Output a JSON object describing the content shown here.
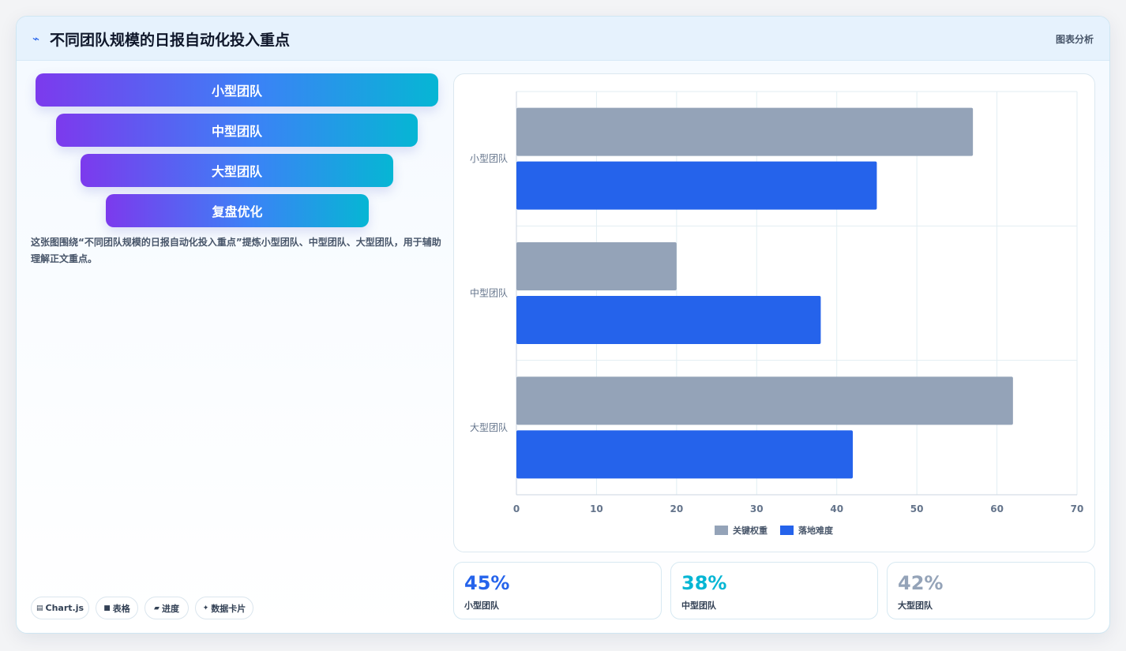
{
  "header": {
    "icon": "chart-line-icon",
    "icon_glyph": "⌁",
    "title": "不同团队规模的日报自动化投入重点",
    "tag": "图表分析"
  },
  "funnel": {
    "items": [
      "小型团队",
      "中型团队",
      "大型团队",
      "复盘优化"
    ]
  },
  "description": "这张图围绕“不同团队规模的日报自动化投入重点”提炼小型团队、中型团队、大型团队，用于辅助理解正文重点。",
  "chips": [
    {
      "icon": "chart-icon",
      "glyph": "▤",
      "label": "Chart.js"
    },
    {
      "icon": "table-icon",
      "glyph": "■",
      "label": "表格"
    },
    {
      "icon": "progress-icon",
      "glyph": "▰",
      "label": "进度"
    },
    {
      "icon": "sparkle-icon",
      "glyph": "✦",
      "label": "数据卡片"
    }
  ],
  "chart_data": {
    "type": "bar",
    "orientation": "horizontal",
    "categories": [
      "小型团队",
      "中型团队",
      "大型团队"
    ],
    "series": [
      {
        "name": "关键权重",
        "values": [
          57,
          20,
          62
        ],
        "color": "#94a3b8"
      },
      {
        "name": "落地难度",
        "values": [
          45,
          38,
          42
        ],
        "color": "#2563eb"
      }
    ],
    "xlim": [
      0,
      70
    ],
    "xticks": [
      0,
      10,
      20,
      30,
      40,
      50,
      60,
      70
    ],
    "grid": true,
    "legend": "bottom"
  },
  "stats": [
    {
      "value": "45%",
      "label": "小型团队",
      "color": "#2563eb"
    },
    {
      "value": "38%",
      "label": "中型团队",
      "color": "#06b6d4"
    },
    {
      "value": "42%",
      "label": "大型团队",
      "color": "#94a3b8"
    }
  ]
}
